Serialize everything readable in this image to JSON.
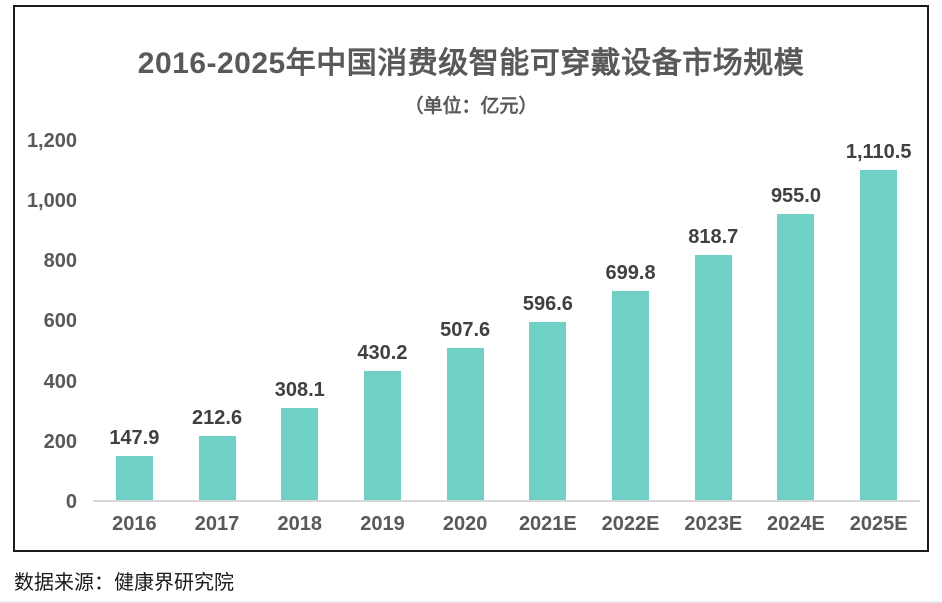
{
  "chart_data": {
    "type": "bar",
    "title": "2016-2025年中国消费级智能可穿戴设备市场规模",
    "subtitle": "（单位：亿元）",
    "categories": [
      "2016",
      "2017",
      "2018",
      "2019",
      "2020",
      "2021E",
      "2022E",
      "2023E",
      "2024E",
      "2025E"
    ],
    "values": [
      147.9,
      212.6,
      308.1,
      430.2,
      507.6,
      596.6,
      699.8,
      818.7,
      955.0,
      1110.5
    ],
    "value_labels": [
      "147.9",
      "212.6",
      "308.1",
      "430.2",
      "507.6",
      "596.6",
      "699.8",
      "818.7",
      "955.0",
      "1,110.5"
    ],
    "xlabel": "",
    "ylabel": "",
    "ylim": [
      0,
      1200
    ],
    "y_ticks": [
      "0",
      "200",
      "400",
      "600",
      "800",
      "1,000",
      "1,200"
    ],
    "grid": false,
    "legend": false,
    "bar_color": "#6fd1c6"
  },
  "source": {
    "text": "数据来源：健康界研究院"
  },
  "colors": {
    "bar": "#6fd1c6",
    "title_text": "#595959",
    "value_label_text": "#404040",
    "axis_text": "#595959",
    "baseline": "#d9d9d9",
    "frame_border": "#1b1b1b"
  }
}
